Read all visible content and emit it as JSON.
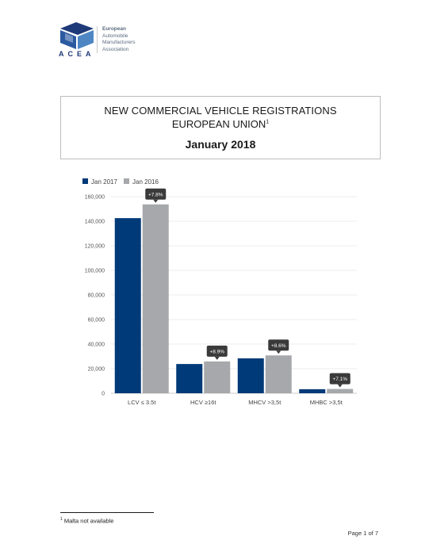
{
  "logo": {
    "acronym": "ACEA",
    "lines": [
      "European",
      "Automobile",
      "Manufacturers",
      "Association"
    ]
  },
  "title": {
    "line1": "NEW COMMERCIAL VEHICLE REGISTRATIONS",
    "line2": "EUROPEAN UNION",
    "footnote_marker": "1",
    "date": "January 2018"
  },
  "colors": {
    "series_2017": "#003a78",
    "series_2016": "#a6a8ab",
    "annotation": "#3a3a3a"
  },
  "chart_data": {
    "type": "bar",
    "categories": [
      "LCV ≤ 3.5t",
      "HCV ≥16t",
      "MHCV >3,5t",
      "MHBC >3,5t"
    ],
    "series": [
      {
        "name": "Jan 2017",
        "values": [
          142500,
          23800,
          28400,
          3300
        ]
      },
      {
        "name": "Jan 2016",
        "values": [
          153700,
          25900,
          30800,
          3500
        ]
      }
    ],
    "annotations": [
      "+7.8%",
      "+8.9%",
      "+8.6%",
      "+7.1%"
    ],
    "yticks": [
      "0",
      "20,000",
      "40,000",
      "60,000",
      "80,000",
      "100,000",
      "120,000",
      "140,000",
      "160,000"
    ],
    "ylim": [
      0,
      160000
    ],
    "grid": true,
    "legend": "top-left"
  },
  "footnote": {
    "marker": "1",
    "text": "Malta not available"
  },
  "page": "Page 1 of 7"
}
